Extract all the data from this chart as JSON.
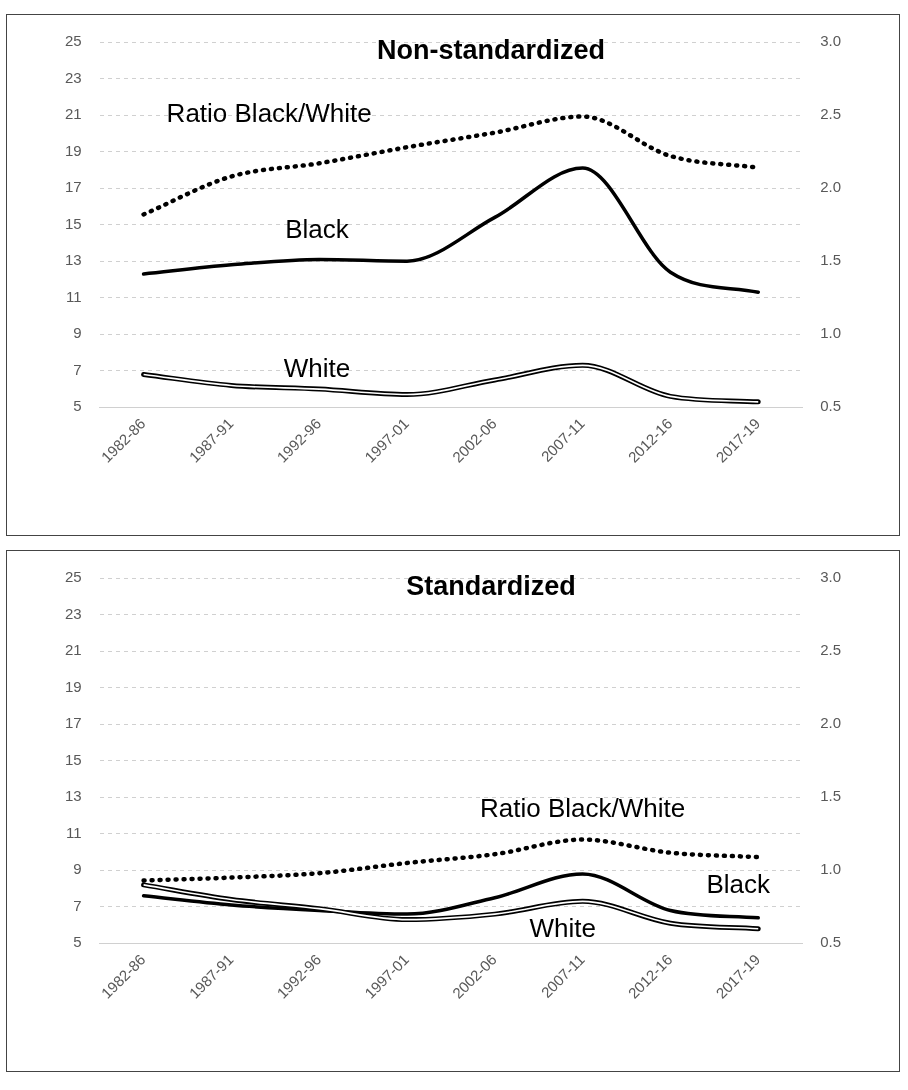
{
  "chart_data": [
    {
      "type": "line",
      "title": "Non-standardized",
      "categories": [
        "1982-86",
        "1987-91",
        "1992-96",
        "1997-01",
        "2002-06",
        "2007-11",
        "2012-16",
        "2017-19"
      ],
      "series": [
        {
          "name": "Black",
          "color": "#000000",
          "line_style": "solid",
          "values": [
            12.3,
            12.8,
            13.1,
            13.0,
            15.4,
            18.1,
            12.4,
            11.3
          ]
        },
        {
          "name": "White",
          "color": "#000000",
          "line_style": "solid",
          "values": [
            6.8,
            6.2,
            6.0,
            5.7,
            6.5,
            7.3,
            5.6,
            5.3
          ]
        },
        {
          "name": "Ratio Black/White",
          "color": "#000000",
          "line_style": "dotted",
          "axis": "y2",
          "values": [
            1.82,
            2.08,
            2.17,
            2.28,
            2.38,
            2.49,
            2.22,
            2.14
          ]
        }
      ],
      "ylim": [
        5,
        25
      ],
      "yticks": [
        5,
        7,
        9,
        11,
        13,
        15,
        17,
        19,
        21,
        23,
        25
      ],
      "y2lim": [
        0.5,
        3
      ],
      "y2ticks": [
        0.5,
        {
          "value": 1,
          "label": "1.0"
        },
        1.5,
        {
          "value": 2,
          "label": "2.0"
        },
        2.5,
        {
          "value": 3,
          "label": "3.0"
        }
      ],
      "grid": "y",
      "legend": false,
      "marker": "none"
    },
    {
      "type": "line",
      "title": "Standardized",
      "categories": [
        "1982-86",
        "1987-91",
        "1992-96",
        "1997-01",
        "2002-06",
        "2007-11",
        "2012-16",
        "2017-19"
      ],
      "series": [
        {
          "name": "Black",
          "color": "#000000",
          "line_style": "solid",
          "values": [
            7.6,
            7.1,
            6.8,
            6.6,
            7.5,
            8.8,
            6.8,
            6.4
          ]
        },
        {
          "name": "White",
          "color": "#000000",
          "line_style": "solid",
          "values": [
            8.2,
            7.4,
            6.9,
            6.3,
            6.6,
            7.3,
            6.1,
            5.8
          ]
        },
        {
          "name": "Ratio Black/White",
          "color": "#000000",
          "line_style": "dotted",
          "axis": "y2",
          "values": [
            0.93,
            0.95,
            0.98,
            1.05,
            1.11,
            1.21,
            1.12,
            1.09
          ]
        }
      ],
      "ylim": [
        5,
        25
      ],
      "yticks": [
        5,
        7,
        9,
        11,
        13,
        15,
        17,
        19,
        21,
        23,
        25
      ],
      "y2lim": [
        0.5,
        3
      ],
      "y2ticks": [
        0.5,
        {
          "value": 1,
          "label": "1.0"
        },
        1.5,
        {
          "value": 2,
          "label": "2.0"
        },
        2.5,
        {
          "value": 3,
          "label": "3.0"
        }
      ],
      "grid": "y",
      "legend": false,
      "marker": "none"
    }
  ]
}
